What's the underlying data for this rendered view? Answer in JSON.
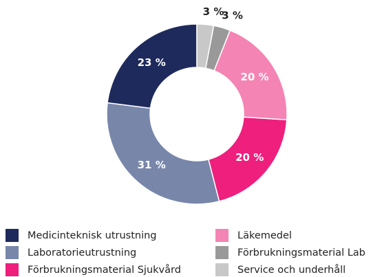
{
  "chart_data": {
    "type": "donut",
    "series": [
      {
        "name": "Medicinteknisk utrustning",
        "color": "#1f2a5c",
        "value": 23,
        "value_label": "23 %"
      },
      {
        "name": "Laboratorieutrustning",
        "color": "#7886aa",
        "value": 31,
        "value_label": "31 %"
      },
      {
        "name": "Förbrukningsmaterial Sjukvård",
        "color": "#ee1f7d",
        "value": 20,
        "value_label": "20 %"
      },
      {
        "name": "Läkemedel",
        "color": "#f484b3",
        "value": 20,
        "value_label": "20 %"
      },
      {
        "name": "Förbrukningsmaterial Lab",
        "color": "#999999",
        "value": 3,
        "value_label": "3 %"
      },
      {
        "name": "Service och underhåll",
        "color": "#c8c8c8",
        "value": 3,
        "value_label": "3 %"
      }
    ]
  }
}
